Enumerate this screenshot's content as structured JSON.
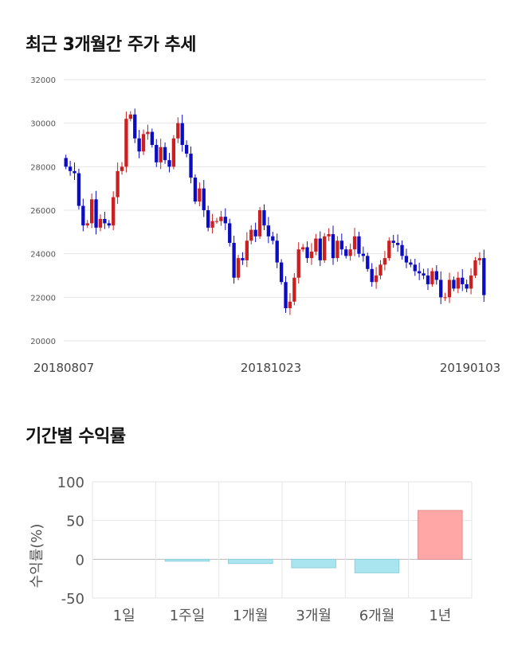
{
  "colors": {
    "up": "#cc1f1f",
    "down": "#0c0cc2",
    "positive_bar": "#ffa6a6",
    "negative_bar": "#a9e5ef",
    "grid": "#e6e6e6"
  },
  "section1": {
    "title": "최근 3개월간 주가 추세"
  },
  "section2": {
    "title": "기간별 수익률"
  },
  "chart_data": [
    {
      "type": "candlestick",
      "title": "최근 3개월간 주가 추세",
      "ylim": [
        20000,
        32000
      ],
      "yticks": [
        "20000",
        "22000",
        "24000",
        "26000",
        "28000",
        "30000",
        "32000"
      ],
      "xtick_labels": [
        "20180807",
        "20181023",
        "20190103"
      ],
      "grid": true,
      "closes": [
        28000,
        27800,
        27700,
        26200,
        25300,
        25400,
        26500,
        25200,
        25600,
        25400,
        25300,
        26600,
        27800,
        28000,
        30200,
        30400,
        29300,
        28700,
        29500,
        29600,
        29000,
        28200,
        28900,
        28300,
        28000,
        29300,
        30000,
        29000,
        28600,
        27500,
        26400,
        27000,
        26000,
        25200,
        25500,
        25500,
        25700,
        25400,
        24500,
        22900,
        23800,
        23700,
        24600,
        25100,
        24800,
        26000,
        25300,
        24800,
        24600,
        23600,
        22700,
        21500,
        21800,
        22900,
        24200,
        24300,
        23800,
        24100,
        24700,
        23700,
        24800,
        24900,
        23800,
        24600,
        24200,
        23900,
        24200,
        24800,
        24000,
        23900,
        23300,
        22700,
        23000,
        23500,
        23800,
        24600,
        24500,
        24400,
        23900,
        23600,
        23500,
        23200,
        23100,
        23000,
        22600,
        23200,
        22800,
        22000,
        22000,
        22800,
        22400,
        22900,
        22600,
        22400,
        23000,
        23700,
        23800,
        22100
      ],
      "volatility_note": null
    },
    {
      "type": "bar",
      "title": "기간별 수익률",
      "ylabel": "수익률(%)",
      "categories": [
        "1일",
        "1주일",
        "1개월",
        "3개월",
        "6개월",
        "1년"
      ],
      "values": [
        0,
        -2.5,
        -5.5,
        -11,
        -17.5,
        63
      ],
      "ylim": [
        -50,
        100
      ],
      "yticks": [
        "100",
        "50",
        "0",
        "-50"
      ],
      "grid": true
    }
  ]
}
